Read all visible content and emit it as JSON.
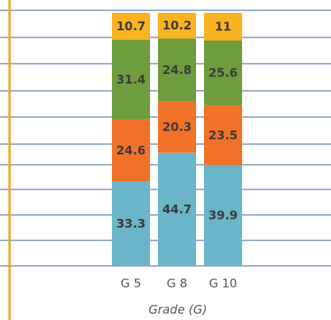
{
  "chart_data": {
    "type": "bar",
    "stacked": true,
    "categories": [
      "G 5",
      "G 8",
      "G 10"
    ],
    "series": [
      {
        "values": [
          33.3,
          44.7,
          39.9
        ],
        "color": "#6bb5c8"
      },
      {
        "values": [
          24.6,
          20.3,
          23.5
        ],
        "color": "#f07228"
      },
      {
        "values": [
          31.4,
          24.8,
          25.6
        ],
        "color": "#6e9c3e"
      },
      {
        "values": [
          10.7,
          10.2,
          11
        ],
        "color": "#f9b221"
      }
    ],
    "xlabel": "Grade (G)",
    "ylim": [
      0,
      100
    ],
    "grid": true,
    "axis_color": "#f2a81d",
    "grid_color": "#2f5c92"
  }
}
